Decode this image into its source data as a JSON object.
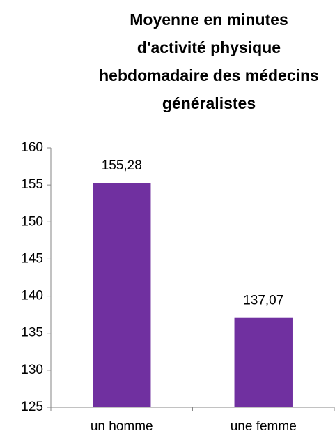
{
  "chart_data": {
    "type": "bar",
    "title": "Moyenne en minutes\nd'activité physique\nhebdomadaire des médecins\ngénéralistes",
    "categories": [
      "un homme",
      "une femme"
    ],
    "values": [
      155.28,
      137.07
    ],
    "value_labels": [
      "155,28",
      "137,07"
    ],
    "color": "#7030a0",
    "ylim": [
      125,
      160
    ],
    "yticks": [
      125,
      130,
      135,
      140,
      145,
      150,
      155,
      160
    ],
    "grid": false
  }
}
